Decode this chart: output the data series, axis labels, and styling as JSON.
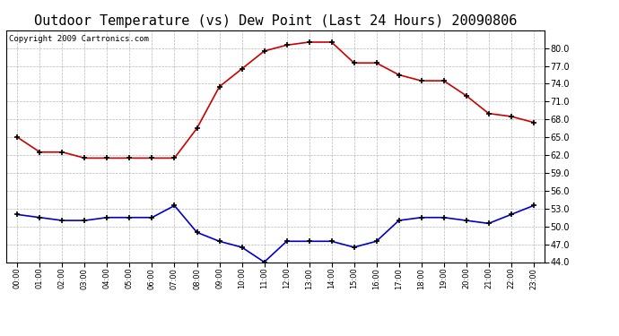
{
  "title": "Outdoor Temperature (vs) Dew Point (Last 24 Hours) 20090806",
  "copyright": "Copyright 2009 Cartronics.com",
  "hours": [
    "00:00",
    "01:00",
    "02:00",
    "03:00",
    "04:00",
    "05:00",
    "06:00",
    "07:00",
    "08:00",
    "09:00",
    "10:00",
    "11:00",
    "12:00",
    "13:00",
    "14:00",
    "15:00",
    "16:00",
    "17:00",
    "18:00",
    "19:00",
    "20:00",
    "21:00",
    "22:00",
    "23:00"
  ],
  "temp": [
    65.0,
    62.5,
    62.5,
    61.5,
    61.5,
    61.5,
    61.5,
    61.5,
    66.5,
    73.5,
    76.5,
    79.5,
    80.5,
    81.0,
    81.0,
    77.5,
    77.5,
    75.5,
    74.5,
    74.5,
    72.0,
    69.0,
    68.5,
    67.5
  ],
  "dew": [
    52.0,
    51.5,
    51.0,
    51.0,
    51.5,
    51.5,
    51.5,
    53.5,
    49.0,
    47.5,
    46.5,
    44.0,
    47.5,
    47.5,
    47.5,
    46.5,
    47.5,
    51.0,
    51.5,
    51.5,
    51.0,
    50.5,
    52.0,
    53.5
  ],
  "temp_color": "#cc0000",
  "dew_color": "#0000cc",
  "bg_color": "#ffffff",
  "grid_color": "#888888",
  "ylim": [
    44.0,
    83.0
  ],
  "yticks": [
    44.0,
    47.0,
    50.0,
    53.0,
    56.0,
    59.0,
    62.0,
    65.0,
    68.0,
    71.0,
    74.0,
    77.0,
    80.0
  ],
  "title_fontsize": 11,
  "copyright_fontsize": 6.5
}
